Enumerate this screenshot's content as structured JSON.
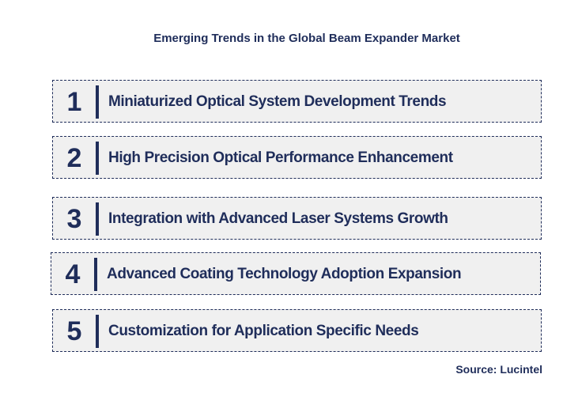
{
  "title": "Emerging Trends in the Global Beam Expander Market",
  "trends": [
    {
      "number": "1",
      "label": "Miniaturized Optical System Development Trends"
    },
    {
      "number": "2",
      "label": "High Precision Optical Performance Enhancement"
    },
    {
      "number": "3",
      "label": "Integration with Advanced Laser Systems Growth"
    },
    {
      "number": "4",
      "label": "Advanced Coating Technology Adoption Expansion"
    },
    {
      "number": "5",
      "label": "Customization for Application Specific Needs"
    }
  ],
  "source": "Source: Lucintel",
  "colors": {
    "text": "#1f2d5a",
    "box_background": "#f0f0f0",
    "page_background": "#ffffff"
  }
}
